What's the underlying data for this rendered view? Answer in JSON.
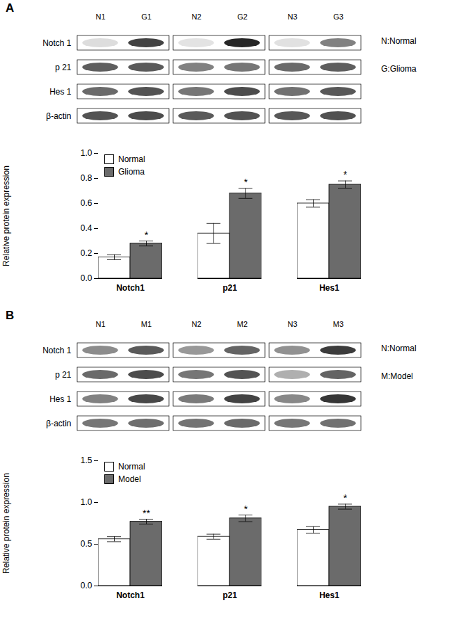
{
  "chart_data": [
    {
      "type": "heatmap",
      "title": "A",
      "x": [
        "N1",
        "G1",
        "N2",
        "G2",
        "N3",
        "G3"
      ],
      "y": [
        "Notch 1",
        "p 21",
        "Hes 1",
        "β-actin"
      ],
      "cells": [
        [
          0.15,
          0.82,
          0.12,
          0.95,
          0.13,
          0.55
        ],
        [
          0.7,
          0.72,
          0.55,
          0.6,
          0.65,
          0.7
        ],
        [
          0.65,
          0.75,
          0.6,
          0.78,
          0.62,
          0.73
        ],
        [
          0.75,
          0.78,
          0.72,
          0.75,
          0.73,
          0.76
        ]
      ],
      "annotations": [
        "N:Normal",
        "G:Glioma"
      ]
    },
    {
      "type": "bar",
      "categories": [
        "Notch1",
        "p21",
        "Hes1"
      ],
      "series": [
        {
          "name": "Normal",
          "color": "#ffffff",
          "values": [
            0.17,
            0.36,
            0.6
          ],
          "errors": [
            0.02,
            0.08,
            0.03
          ]
        },
        {
          "name": "Glioma",
          "color": "#6b6b6b",
          "values": [
            0.28,
            0.68,
            0.75
          ],
          "errors": [
            0.02,
            0.04,
            0.03
          ],
          "significance": [
            "*",
            "*",
            "*"
          ]
        }
      ],
      "ylabel": "Relative protein expression",
      "ylim": [
        0,
        1.0
      ],
      "yticks": [
        {
          "value": 0,
          "label": "0.0"
        },
        0.2,
        0.4,
        0.6,
        0.8,
        {
          "value": 1.0,
          "label": "1.0"
        }
      ],
      "legend": "upper left",
      "grid": false
    },
    {
      "type": "heatmap",
      "title": "B",
      "x": [
        "N1",
        "M1",
        "N2",
        "M2",
        "N3",
        "M3"
      ],
      "y": [
        "Notch 1",
        "p 21",
        "Hes 1",
        "β-actin"
      ],
      "cells": [
        [
          0.5,
          0.72,
          0.45,
          0.68,
          0.48,
          0.85
        ],
        [
          0.65,
          0.78,
          0.6,
          0.75,
          0.35,
          0.68
        ],
        [
          0.55,
          0.8,
          0.58,
          0.82,
          0.52,
          0.88
        ],
        [
          0.6,
          0.63,
          0.61,
          0.65,
          0.6,
          0.62
        ]
      ],
      "annotations": [
        "N:Normal",
        "M:Model"
      ]
    },
    {
      "type": "bar",
      "categories": [
        "Notch1",
        "p21",
        "Hes1"
      ],
      "series": [
        {
          "name": "Normal",
          "color": "#ffffff",
          "values": [
            0.56,
            0.59,
            0.67
          ],
          "errors": [
            0.03,
            0.03,
            0.04
          ]
        },
        {
          "name": "Model",
          "color": "#6b6b6b",
          "values": [
            0.77,
            0.81,
            0.95
          ],
          "errors": [
            0.03,
            0.04,
            0.03
          ],
          "significance": [
            "**",
            "*",
            "*"
          ]
        }
      ],
      "ylabel": "Relative protein expression",
      "ylim": [
        0,
        1.5
      ],
      "yticks": [
        {
          "value": 0,
          "label": "0.0"
        },
        0.5,
        {
          "value": 1.0,
          "label": "1.0"
        },
        1.5
      ],
      "legend": "upper left",
      "grid": false
    }
  ]
}
